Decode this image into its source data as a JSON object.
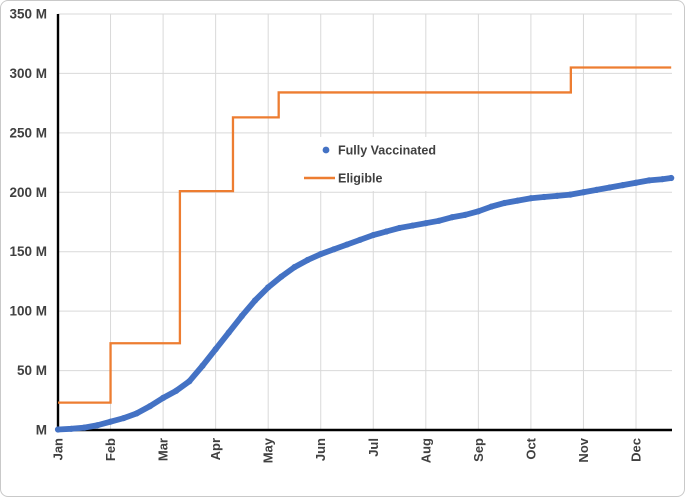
{
  "figure": {
    "background_color": "#ffffff",
    "frame_border_color": "#c9c9c9",
    "axis_line_color": "#000000",
    "gridline_color": "#d9d9d9",
    "text_color": "#404040"
  },
  "chart_data": {
    "type": "line",
    "title": "",
    "xlabel": "",
    "ylabel": "",
    "x_axis": {
      "unit": "month",
      "tick_labels": [
        "Jan",
        "Feb",
        "Mar",
        "Apr",
        "May",
        "Jun",
        "Jul",
        "Aug",
        "Sep",
        "Oct",
        "Nov",
        "Dec"
      ],
      "label_rotation_degrees": -90,
      "x_range_months": [
        0,
        11.67
      ]
    },
    "y_axis": {
      "min": 0,
      "max": 350,
      "unit": "millions",
      "tick_labels": [
        {
          "label": "350 M",
          "value": 350
        },
        {
          "label": "300 M",
          "value": 300
        },
        {
          "label": "250 M",
          "value": 250
        },
        {
          "label": "200 M",
          "value": 200
        },
        {
          "label": "150 M",
          "value": 150
        },
        {
          "label": "100 M",
          "value": 100
        },
        {
          "label": "50 M",
          "value": 50
        },
        {
          "label": "M",
          "value": 0
        }
      ]
    },
    "gridlines": {
      "horizontal_step_millions": 50,
      "vertical_step_months": 1,
      "color": "#d9d9d9",
      "grid_on": true
    },
    "legend": {
      "position": "inside-upper-center",
      "background": "#ffffff"
    },
    "series": [
      {
        "name": "Fully Vaccinated",
        "color": "#4472C4",
        "style": "dense-round-markers",
        "points_month_value_millions": [
          [
            0,
            0.4
          ],
          [
            0.25,
            1
          ],
          [
            0.5,
            2
          ],
          [
            0.75,
            4
          ],
          [
            1,
            7
          ],
          [
            1.25,
            10
          ],
          [
            1.5,
            14
          ],
          [
            1.75,
            20
          ],
          [
            2,
            27
          ],
          [
            2.25,
            33
          ],
          [
            2.5,
            41
          ],
          [
            2.75,
            54
          ],
          [
            3,
            68
          ],
          [
            3.25,
            82
          ],
          [
            3.5,
            96
          ],
          [
            3.75,
            109
          ],
          [
            4,
            120
          ],
          [
            4.25,
            129
          ],
          [
            4.5,
            137
          ],
          [
            4.75,
            143
          ],
          [
            5,
            148
          ],
          [
            5.25,
            152
          ],
          [
            5.5,
            156
          ],
          [
            5.75,
            160
          ],
          [
            6,
            164
          ],
          [
            6.25,
            167
          ],
          [
            6.5,
            170
          ],
          [
            6.75,
            172
          ],
          [
            7,
            174
          ],
          [
            7.25,
            176
          ],
          [
            7.5,
            179
          ],
          [
            7.75,
            181
          ],
          [
            8,
            184
          ],
          [
            8.25,
            188
          ],
          [
            8.5,
            191
          ],
          [
            8.75,
            193
          ],
          [
            9,
            195
          ],
          [
            9.25,
            196
          ],
          [
            9.5,
            197
          ],
          [
            9.75,
            198
          ],
          [
            10,
            200
          ],
          [
            10.25,
            202
          ],
          [
            10.5,
            204
          ],
          [
            10.75,
            206
          ],
          [
            11,
            208
          ],
          [
            11.25,
            210
          ],
          [
            11.5,
            211
          ],
          [
            11.67,
            212
          ]
        ]
      },
      {
        "name": "Eligible",
        "color": "#ED7D31",
        "style": "step-line",
        "points_month_value_millions": [
          [
            0,
            23
          ],
          [
            1,
            23
          ],
          [
            1,
            73
          ],
          [
            2.32,
            73
          ],
          [
            2.32,
            201
          ],
          [
            3.33,
            201
          ],
          [
            3.33,
            263
          ],
          [
            4.2,
            263
          ],
          [
            4.2,
            284
          ],
          [
            9.76,
            284
          ],
          [
            9.76,
            305
          ],
          [
            11.67,
            305
          ]
        ]
      }
    ]
  }
}
